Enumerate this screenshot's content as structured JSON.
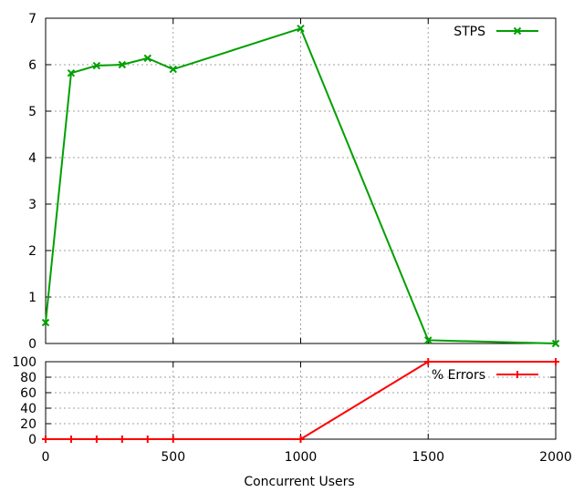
{
  "chart_data": [
    {
      "type": "line",
      "xlabel": "",
      "ylabel": "",
      "xlim": [
        0,
        2000
      ],
      "ylim": [
        0,
        7
      ],
      "xticks": [
        0,
        500,
        1000,
        1500,
        2000
      ],
      "yticks": [
        0,
        1,
        2,
        3,
        4,
        5,
        6,
        7
      ],
      "show_xtick_labels": false,
      "grid": true,
      "legend": "top-right",
      "series": [
        {
          "name": "STPS",
          "color": "#00a000",
          "marker": "x",
          "x": [
            0,
            100,
            200,
            300,
            400,
            500,
            1000,
            1500,
            2000
          ],
          "y": [
            0.45,
            5.82,
            5.98,
            6.0,
            6.14,
            5.9,
            6.78,
            0.07,
            0.0
          ]
        }
      ]
    },
    {
      "type": "line",
      "xlabel": "Concurrent Users",
      "ylabel": "",
      "xlim": [
        0,
        2000
      ],
      "ylim": [
        0,
        100
      ],
      "xticks": [
        0,
        500,
        1000,
        1500,
        2000
      ],
      "yticks": [
        0,
        20,
        40,
        60,
        80,
        100
      ],
      "show_xtick_labels": true,
      "grid": true,
      "legend": "top-right",
      "series": [
        {
          "name": "% Errors",
          "color": "#ff0000",
          "marker": "+",
          "x": [
            0,
            100,
            200,
            300,
            400,
            500,
            1000,
            1500,
            2000
          ],
          "y": [
            0,
            0,
            0,
            0,
            0,
            0,
            0,
            100,
            100
          ]
        }
      ]
    }
  ]
}
